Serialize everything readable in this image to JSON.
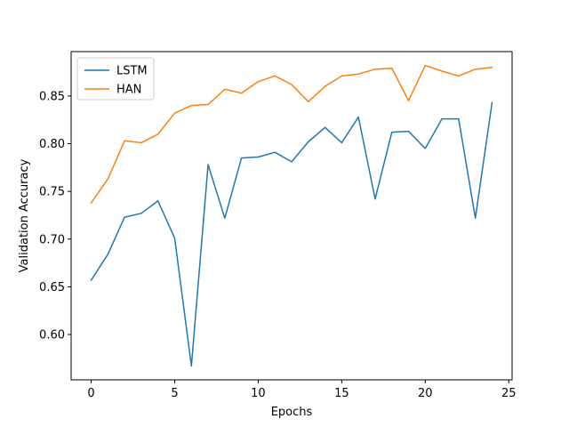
{
  "chart_data": {
    "type": "line",
    "xlabel": "Epochs",
    "ylabel": "Validation Accuracy",
    "xlim": [
      -1.2,
      25.2
    ],
    "ylim": [
      0.5525,
      0.8965
    ],
    "xticks": [
      0,
      5,
      10,
      15,
      20,
      25
    ],
    "xtick_labels": [
      "0",
      "5",
      "10",
      "15",
      "20",
      "25"
    ],
    "yticks": [
      0.6,
      0.65,
      0.7,
      0.75,
      0.8,
      0.85
    ],
    "ytick_labels": [
      "0.60",
      "0.65",
      "0.70",
      "0.75",
      "0.80",
      "0.85"
    ],
    "grid": false,
    "legend_position": "upper-left",
    "x": [
      0,
      1,
      2,
      3,
      4,
      5,
      6,
      7,
      8,
      9,
      10,
      11,
      12,
      13,
      14,
      15,
      16,
      17,
      18,
      19,
      20,
      21,
      22,
      23,
      24
    ],
    "series": [
      {
        "name": "LSTM",
        "color": "#1f77b4",
        "values": [
          0.657,
          0.684,
          0.723,
          0.727,
          0.74,
          0.701,
          0.567,
          0.778,
          0.722,
          0.785,
          0.786,
          0.791,
          0.781,
          0.802,
          0.817,
          0.801,
          0.828,
          0.742,
          0.812,
          0.813,
          0.795,
          0.826,
          0.826,
          0.722,
          0.843
        ]
      },
      {
        "name": "HAN",
        "color": "#ff7f0e",
        "values": [
          0.738,
          0.763,
          0.803,
          0.801,
          0.81,
          0.832,
          0.84,
          0.841,
          0.857,
          0.853,
          0.865,
          0.871,
          0.862,
          0.844,
          0.86,
          0.871,
          0.873,
          0.878,
          0.879,
          0.845,
          0.882,
          0.876,
          0.871,
          0.878,
          0.88
        ]
      }
    ]
  }
}
